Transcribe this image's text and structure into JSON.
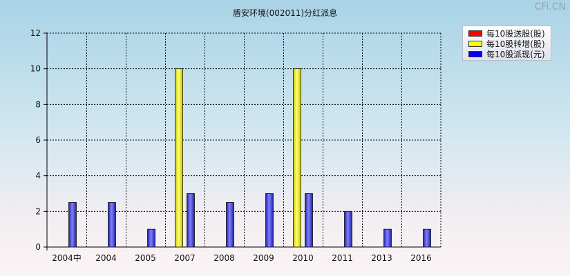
{
  "watermark": "CFi.CN",
  "chart_data": {
    "type": "bar",
    "title": "盾安环境(002011)分红派息",
    "xlabel": "",
    "ylabel": "",
    "categories": [
      "2004中",
      "2004",
      "2005",
      "2007",
      "2008",
      "2009",
      "2010",
      "2011",
      "2013",
      "2016"
    ],
    "ylim": [
      0,
      12
    ],
    "yticks": [
      0,
      2,
      4,
      6,
      8,
      10,
      12
    ],
    "grid": true,
    "legend_position": "top-right",
    "series": [
      {
        "name": "每10股送股(股)",
        "color": "#ff0000",
        "values": [
          0,
          0,
          0,
          0,
          0,
          0,
          0,
          0,
          0,
          0
        ]
      },
      {
        "name": "每10股转增(股)",
        "color": "#ffff00",
        "values": [
          0,
          0,
          0,
          10,
          0,
          0,
          10,
          0,
          0,
          0
        ]
      },
      {
        "name": "每10股派现(元)",
        "color": "#0000ff",
        "values": [
          2.5,
          2.5,
          1,
          3,
          2.5,
          3,
          3,
          2,
          1,
          1
        ]
      }
    ]
  }
}
